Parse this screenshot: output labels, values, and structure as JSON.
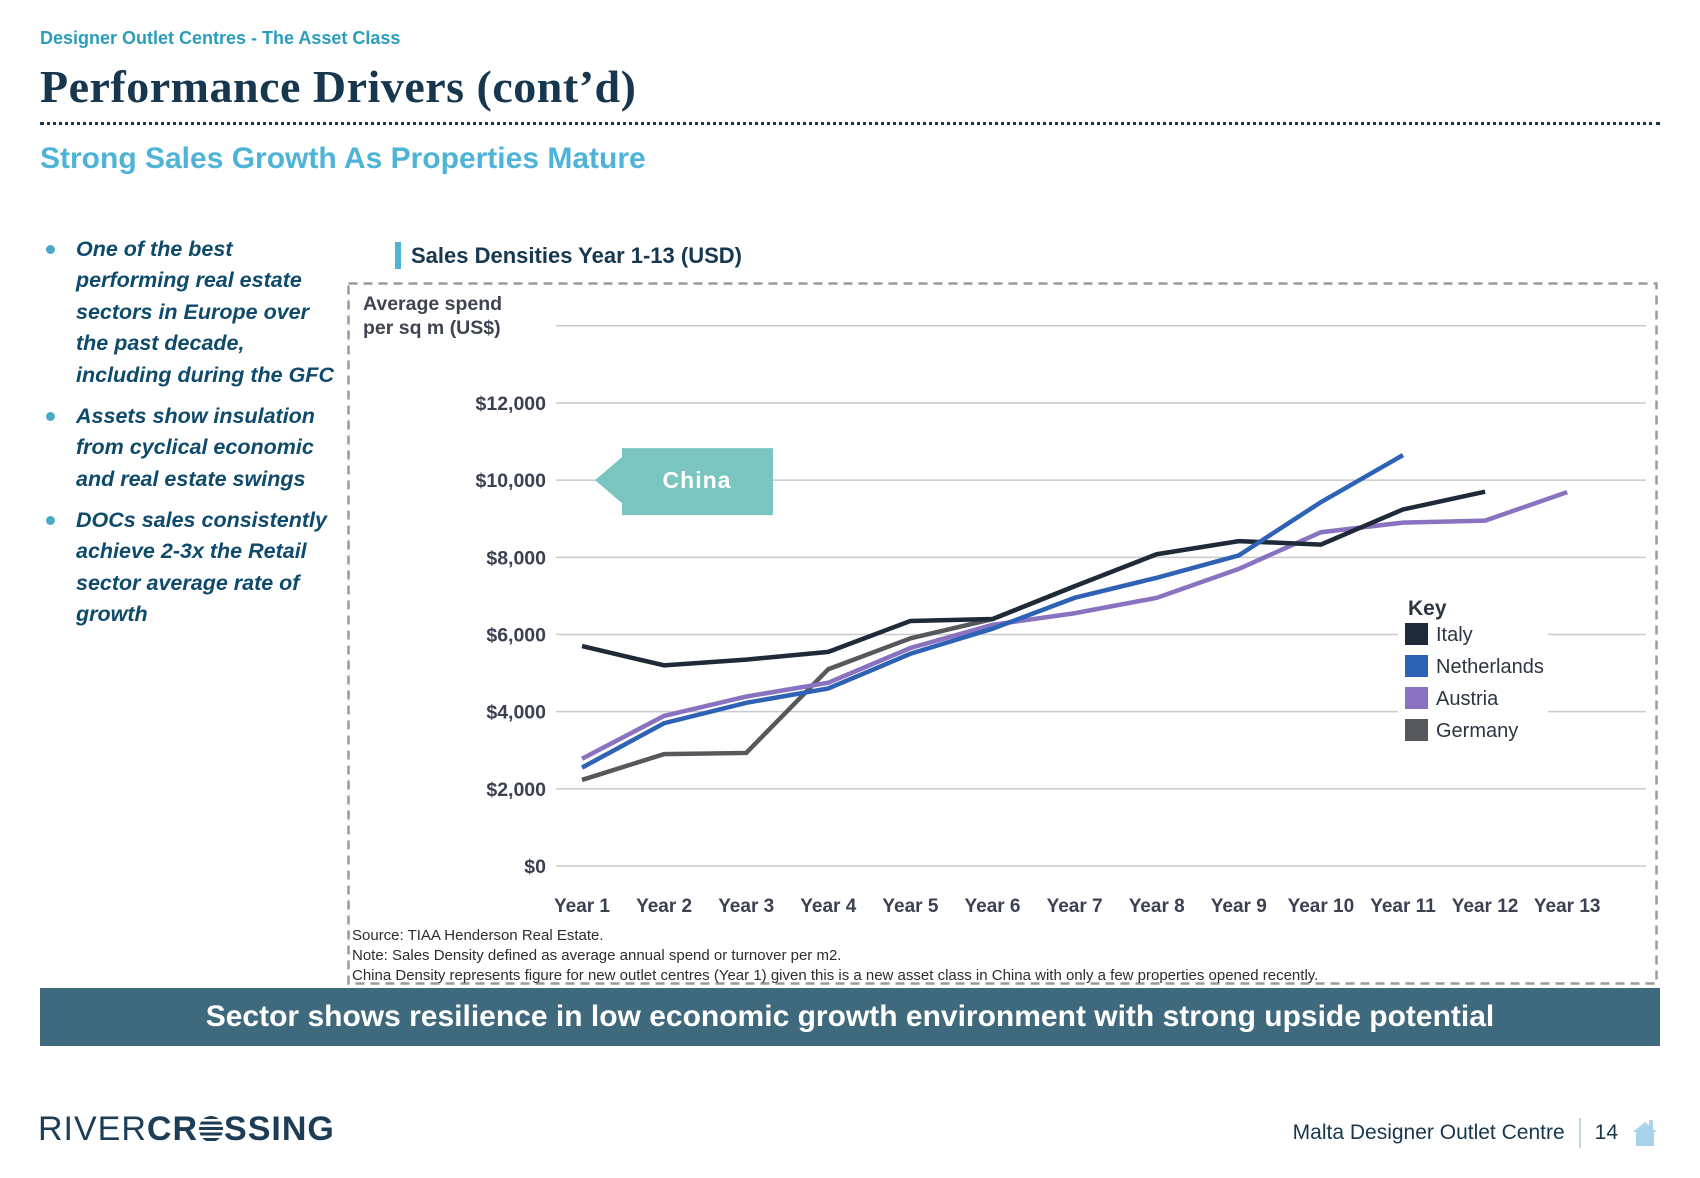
{
  "page": {
    "eyebrow": "Designer Outlet Centres - The Asset Class",
    "title": "Performance Drivers (cont’d)",
    "subtitle": "Strong Sales Growth As Properties Mature",
    "bullets": [
      "One of the best performing real estate sectors in Europe over the past decade, including during the GFC",
      "Assets show insulation from cyclical economic and real estate swings",
      "DOCs sales consistently achieve 2-3x the Retail sector average rate of growth"
    ],
    "banner": "Sector shows resilience in low economic growth environment with strong upside potential",
    "footer": {
      "logo_river": "RIVER",
      "logo_crossing_pre": "CR",
      "logo_crossing_post": "SSING",
      "right_text": "Malta Designer Outlet Centre",
      "page_number": "14"
    },
    "colors": {
      "navy": "#17374f",
      "teal_eyebrow": "#2b9dbb",
      "subtitle_blue": "#4db4d8",
      "bullet_text": "#0e4a6b",
      "banner_bg": "#3f6a7e",
      "china_callout": "#7ac5c0",
      "grid": "#c9cacb",
      "dashed_border": "#9b9b9b"
    }
  },
  "chart_data": {
    "type": "line",
    "title": "Sales Densities Year 1-13 (USD)",
    "y_axis_label_lines": [
      "Average spend",
      "per sq m (US$)"
    ],
    "categories": [
      "Year 1",
      "Year 2",
      "Year 3",
      "Year 4",
      "Year 5",
      "Year 6",
      "Year 7",
      "Year 8",
      "Year 9",
      "Year 10",
      "Year 11",
      "Year 12",
      "Year 13"
    ],
    "ytick_labels": [
      "$12,000",
      "$10,000",
      "$8,000",
      "$6,000",
      "$4,000",
      "$2,000",
      "$0"
    ],
    "ytick_values": [
      12000,
      10000,
      8000,
      6000,
      4000,
      2000,
      0
    ],
    "ylim": [
      0,
      14000
    ],
    "grid": "horizontal",
    "legend_title": "Key",
    "legend_position": "inside-right",
    "series": [
      {
        "name": "Italy",
        "color": "#1f2a38",
        "values": [
          5700,
          5200,
          5350,
          5550,
          6350,
          6400,
          7250,
          8080,
          8420,
          8330,
          9240,
          9700
        ]
      },
      {
        "name": "Netherlands",
        "color": "#2e62b5",
        "values": [
          2550,
          3700,
          4230,
          4600,
          5500,
          6150,
          6950,
          7470,
          8050,
          9430,
          10650
        ]
      },
      {
        "name": "Austria",
        "color": "#8973c1",
        "values": [
          2780,
          3890,
          4390,
          4750,
          5650,
          6250,
          6550,
          6950,
          7700,
          8650,
          8900,
          8950,
          9690
        ]
      },
      {
        "name": "Germany",
        "color": "#57585c",
        "values": [
          2230,
          2900,
          2930,
          5100,
          5900,
          6400,
          7250
        ]
      }
    ],
    "annotation": {
      "label": "China",
      "value": 10000
    },
    "notes": [
      "Source: TIAA Henderson Real Estate.",
      "Note: Sales Density defined as average annual spend or turnover per m2.",
      "China Density represents figure for new outlet centres (Year 1) given this is a new asset class in China with only a few properties opened recently."
    ]
  }
}
